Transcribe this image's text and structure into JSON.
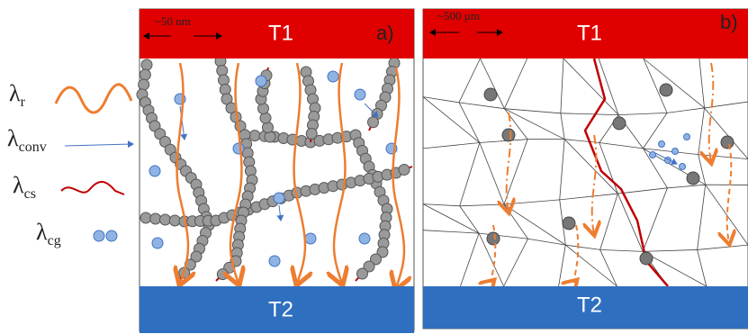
{
  "legend": [
    {
      "symbol": "λ",
      "subscript": "r"
    },
    {
      "symbol": "λ",
      "subscript": "conv"
    },
    {
      "symbol": "λ",
      "subscript": "cs"
    },
    {
      "symbol": "λ",
      "subscript": "cg"
    }
  ],
  "panels": [
    {
      "scale": "~50  nm",
      "top": "T1",
      "label": "a)",
      "bottom": "T2"
    },
    {
      "scale": "~500  μm",
      "top": "T1",
      "label": "b)",
      "bottom": "T2"
    }
  ]
}
